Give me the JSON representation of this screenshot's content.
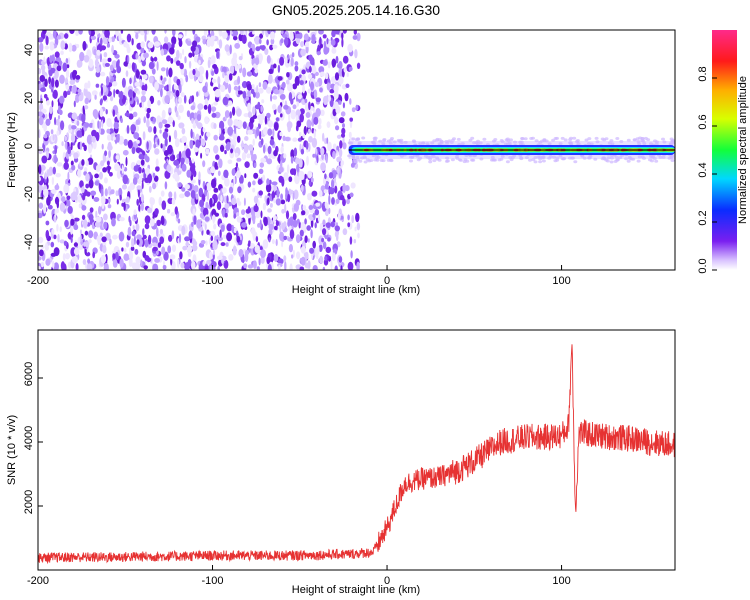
{
  "title": "GN05.2025.205.14.16.G30",
  "chart_data": [
    {
      "type": "heatmap",
      "xlabel": "Height of straight line (km)",
      "ylabel": "Frequency (Hz)",
      "xlim": [
        -200,
        165
      ],
      "ylim": [
        -50,
        50
      ],
      "x_ticks": [
        -200,
        -100,
        0,
        100
      ],
      "y_ticks": [
        -40,
        -20,
        0,
        20,
        40
      ],
      "grid": false,
      "colorbar": {
        "label": "Normalized spectral amplitude",
        "range": [
          0.0,
          1.0
        ],
        "ticks": [
          0.0,
          0.2,
          0.4,
          0.6,
          0.8
        ],
        "colormap": "rainbow (violet-blue-cyan-green-yellow-red-magenta)"
      },
      "noise_region_x": [
        -200,
        -22
      ],
      "signal_line": {
        "x_range": [
          -22,
          165
        ],
        "frequency": 0
      }
    },
    {
      "type": "line",
      "xlabel": "Height of straight line (km)",
      "ylabel": "SNR (10 * v/v)",
      "xlim": [
        -200,
        165
      ],
      "ylim": [
        0,
        7500
      ],
      "x_ticks": [
        -200,
        -100,
        0,
        100
      ],
      "y_ticks": [
        2000,
        4000,
        6000
      ],
      "grid": false,
      "color": "#e63232",
      "series": [
        {
          "x": [
            -200,
            -180,
            -160,
            -140,
            -120,
            -100,
            -80,
            -60,
            -40,
            -20,
            -8,
            0,
            5,
            10,
            20,
            30,
            40,
            50,
            60,
            65,
            70,
            80,
            90,
            100,
            104,
            106,
            107,
            108,
            110,
            120,
            140,
            150,
            165
          ],
          "values": [
            380,
            400,
            400,
            420,
            430,
            450,
            450,
            450,
            470,
            500,
            560,
            1300,
            2000,
            2700,
            2850,
            2900,
            3100,
            3400,
            3800,
            4000,
            4050,
            4150,
            4150,
            4200,
            4500,
            7200,
            4200,
            1800,
            4300,
            4200,
            4100,
            4000,
            3900
          ]
        }
      ]
    }
  ]
}
